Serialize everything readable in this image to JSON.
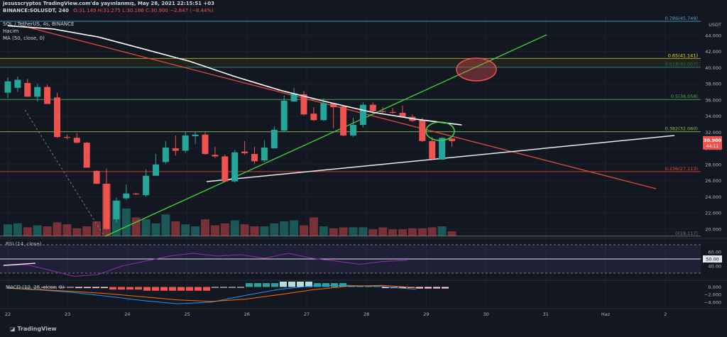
{
  "header": {
    "line1": "jesusscryptos TradingView.com'da yayınlanmış, May 28, 2021 22:15:51 +03",
    "symbol": "BINANCE:SOLUSDT, 240",
    "o": "O:31.149",
    "h": "H:31.275",
    "l": "L:30.186",
    "c": "C:30.900",
    "change": "−2.847 (−8.44%)",
    "title": "SOL / TetherUS, 4s, BINANCE",
    "sub1": "Hacim",
    "sub2": "MA (50, close, 0)"
  },
  "footer": {
    "brand": "TradingView"
  },
  "colors": {
    "bg": "#131722",
    "up": "#26a69a",
    "down": "#ef5350",
    "trend_red": "#e24b3b",
    "trend_green": "#3ed63a",
    "ma": "#ffffff",
    "rsi": "#9c27b0",
    "macd": "#2196f3",
    "signal": "#ff6d00"
  },
  "chart_data": [
    {
      "type": "candlestick",
      "title": "SOL / TetherUS, 4s, BINANCE",
      "currency": "USDT",
      "x_labels": [
        "22",
        "23",
        "24",
        "25",
        "26",
        "27",
        "28",
        "29",
        "30",
        "31",
        "Haz",
        "2"
      ],
      "y_ticks": [
        20,
        22,
        24,
        26,
        28,
        30,
        32,
        34,
        36,
        38,
        40,
        42,
        44
      ],
      "y_tick_labels": [
        "20.000",
        "22.000",
        "24.000",
        "26.000",
        "28.000",
        "30.000",
        "32.000",
        "34.000",
        "36.000",
        "38.000",
        "40.000",
        "42.000",
        "44.000"
      ],
      "ylim": [
        19.1,
        45.75
      ],
      "candles": [
        [
          36.9,
          38.3,
          36.2,
          38.8,
          36
        ],
        [
          37.5,
          38.5,
          37.0,
          38.9,
          35.5
        ],
        [
          38.1,
          36.4,
          36.4,
          38.6,
          35.5
        ],
        [
          36.4,
          37.6,
          35.8,
          38.0,
          35.1
        ],
        [
          37.6,
          35.5,
          35.5,
          37.9,
          34.4
        ],
        [
          36.3,
          31.4,
          31.3,
          36.9,
          30.5
        ],
        [
          31.4,
          31.3,
          31.1,
          31.7,
          28.2
        ],
        [
          31.3,
          30.7,
          30.6,
          31.9,
          29.8
        ],
        [
          30.7,
          27.6,
          27.6,
          30.8,
          25.5
        ],
        [
          27.2,
          25.6,
          25.6,
          27.3,
          22.6
        ],
        [
          25.6,
          20.0,
          19.9,
          27.5,
          19.3
        ],
        [
          21.2,
          23.5,
          20.8,
          23.9,
          20.5
        ],
        [
          23.8,
          24.4,
          23.6,
          25.5,
          23.0
        ],
        [
          24.4,
          24.3,
          24.2,
          24.5,
          23.8
        ],
        [
          24.2,
          26.6,
          24.0,
          27.4,
          23.7
        ],
        [
          26.6,
          28.0,
          26.6,
          29.3,
          26.2
        ],
        [
          28.3,
          30.1,
          28.1,
          30.9,
          28.0
        ],
        [
          30.0,
          29.7,
          29.1,
          31.6,
          28.9
        ],
        [
          29.7,
          31.6,
          29.4,
          32.1,
          29.0
        ],
        [
          31.5,
          31.7,
          30.5,
          32.1,
          30.2
        ],
        [
          31.7,
          29.3,
          29.2,
          32.0,
          28.6
        ],
        [
          29.2,
          29.0,
          28.8,
          30.2,
          28.2
        ],
        [
          29.0,
          25.9,
          25.9,
          29.2,
          25.0
        ],
        [
          25.9,
          29.5,
          25.8,
          29.8,
          25.6
        ],
        [
          29.6,
          29.4,
          29.2,
          30.9,
          27.7
        ],
        [
          29.3,
          28.4,
          28.1,
          30.2,
          27.8
        ],
        [
          28.5,
          30.1,
          28.3,
          31.0,
          28.2
        ],
        [
          30.0,
          32.3,
          30.0,
          32.7,
          29.4
        ],
        [
          32.2,
          35.9,
          32.1,
          36.6,
          31.1
        ],
        [
          35.8,
          36.8,
          35.8,
          37.5,
          34.9
        ],
        [
          36.7,
          34.2,
          34.1,
          37.1,
          33.6
        ],
        [
          34.3,
          33.5,
          33.4,
          35.1,
          33.0
        ],
        [
          33.5,
          35.6,
          33.4,
          36.2,
          33.1
        ],
        [
          35.6,
          35.1,
          32.5,
          35.6,
          32.0
        ],
        [
          35.2,
          31.6,
          31.5,
          35.3,
          30.9
        ],
        [
          31.6,
          32.9,
          31.4,
          33.8,
          30.9
        ],
        [
          32.9,
          35.4,
          32.6,
          35.7,
          32.0
        ],
        [
          35.4,
          34.6,
          34.4,
          35.7,
          33.8
        ],
        [
          34.6,
          34.5,
          34.4,
          35.1,
          33.6
        ],
        [
          34.5,
          34.4,
          34.3,
          35.0,
          33.7
        ],
        [
          34.4,
          33.9,
          33.8,
          35.3,
          33.0
        ],
        [
          33.9,
          33.4,
          33.3,
          34.2,
          32.8
        ],
        [
          33.5,
          30.9,
          30.8,
          33.8,
          29.5
        ],
        [
          30.9,
          28.7,
          28.6,
          31.4,
          28.4
        ],
        [
          28.6,
          31.3,
          28.6,
          31.4,
          28.5
        ],
        [
          31.2,
          30.9,
          30.2,
          31.3,
          30.2
        ]
      ],
      "volume": [
        2.4,
        2.6,
        1.8,
        2.2,
        2.0,
        2.8,
        2.4,
        1.6,
        2.0,
        3.0,
        10.6,
        7.2,
        5.6,
        3.8,
        3.4,
        2.6,
        4.4,
        3.0,
        2.4,
        2.0,
        3.4,
        2.2,
        2.6,
        3.2,
        2.4,
        2.0,
        2.0,
        2.6,
        3.0,
        3.2,
        2.2,
        3.8,
        2.0,
        1.6,
        1.8,
        1.8,
        1.8,
        1.4,
        1.8,
        1.4,
        1.4,
        1.6,
        1.6,
        1.8,
        2.0,
        1.0
      ],
      "fib_levels": [
        {
          "label": "0.786(45.749)",
          "value": 45.749,
          "color": "#4ea3d6"
        },
        {
          "label": "0.65(41.141)",
          "value": 41.141,
          "color": "#e8e23a"
        },
        {
          "label": "0.618(40.057)",
          "value": 40.057,
          "color": "#26a69a"
        },
        {
          "label": "0.5(36.058)",
          "value": 36.058,
          "color": "#4caf50"
        },
        {
          "label": "0.382(32.060)",
          "value": 32.06,
          "color": "#8bc34a"
        },
        {
          "label": "0.236(27.113)",
          "value": 27.113,
          "color": "#f44336"
        },
        {
          "label": "0(19.117)",
          "value": 19.117,
          "color": "#787b86"
        }
      ],
      "price_label": "30.900",
      "countdown": "44:11",
      "ma_50": [
        [
          0,
          45.2
        ],
        [
          5,
          44.8
        ],
        [
          10,
          43.8
        ],
        [
          15,
          42.3
        ],
        [
          20,
          40.8
        ],
        [
          25,
          38.9
        ],
        [
          30,
          37.2
        ],
        [
          35,
          35.8
        ],
        [
          40,
          34.5
        ],
        [
          45,
          33.6
        ],
        [
          50,
          32.9
        ]
      ]
    },
    {
      "type": "line",
      "title": "RSI (14, close)",
      "value_label": "50.00",
      "y_ticks": [
        40,
        60
      ],
      "ylim": [
        25,
        75
      ],
      "band": [
        30,
        70
      ],
      "values": [
        40.5,
        42.0,
        34.0,
        25.5,
        28.0,
        40.0,
        47.0,
        54.0,
        58.0,
        54.0,
        56.0,
        51.0,
        58.0,
        51.0,
        47.0,
        42.5,
        46.5,
        48.0
      ]
    },
    {
      "type": "line",
      "title": "MACD (12, 26, close, 9)",
      "y_ticks": [
        0,
        -2,
        -4
      ],
      "y_tick_labels": [
        "0.000",
        "−2.000",
        "−4.000"
      ],
      "ylim": [
        -5.5,
        1.2
      ],
      "macd": [
        -0.3,
        -0.8,
        -1.5,
        -2.5,
        -3.6,
        -4.4,
        -4.0,
        -2.2,
        -0.6,
        0.3,
        0.4,
        0.1,
        -0.6
      ],
      "signal": [
        -0.3,
        -0.7,
        -1.2,
        -1.8,
        -2.6,
        -3.4,
        -3.8,
        -3.2,
        -2.0,
        -0.7,
        0.2,
        0.4,
        -0.2
      ],
      "histogram": [
        0.0,
        -0.1,
        -0.3,
        -0.7,
        -1.0,
        -1.0,
        -0.2,
        1.0,
        1.4,
        1.0,
        0.2,
        -0.3,
        -0.4
      ]
    }
  ]
}
